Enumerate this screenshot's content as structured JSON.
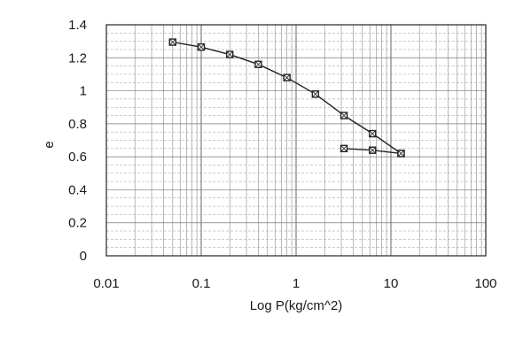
{
  "chart_data": {
    "type": "scatter",
    "xscale": "log",
    "xlim": [
      0.01,
      100
    ],
    "ylim": [
      0,
      1.4
    ],
    "xlabel": "Log P(kg/cm^2)",
    "ylabel": "e",
    "xticks": [
      "0.01",
      "0.1",
      "1",
      "10",
      "100"
    ],
    "yticks": [
      "0",
      "0.2",
      "0.4",
      "0.6",
      "0.8",
      "1",
      "1.2",
      "1.4"
    ],
    "grid": true,
    "series": [
      {
        "x": [
          0.05,
          0.1,
          0.2,
          0.4,
          0.8,
          1.6,
          3.2,
          6.4,
          12.8
        ],
        "y": [
          1.295,
          1.265,
          1.22,
          1.16,
          1.08,
          0.98,
          0.85,
          0.74,
          0.62
        ]
      },
      {
        "x": [
          12.8,
          6.4,
          3.2
        ],
        "y": [
          0.62,
          0.64,
          0.65
        ]
      }
    ]
  }
}
